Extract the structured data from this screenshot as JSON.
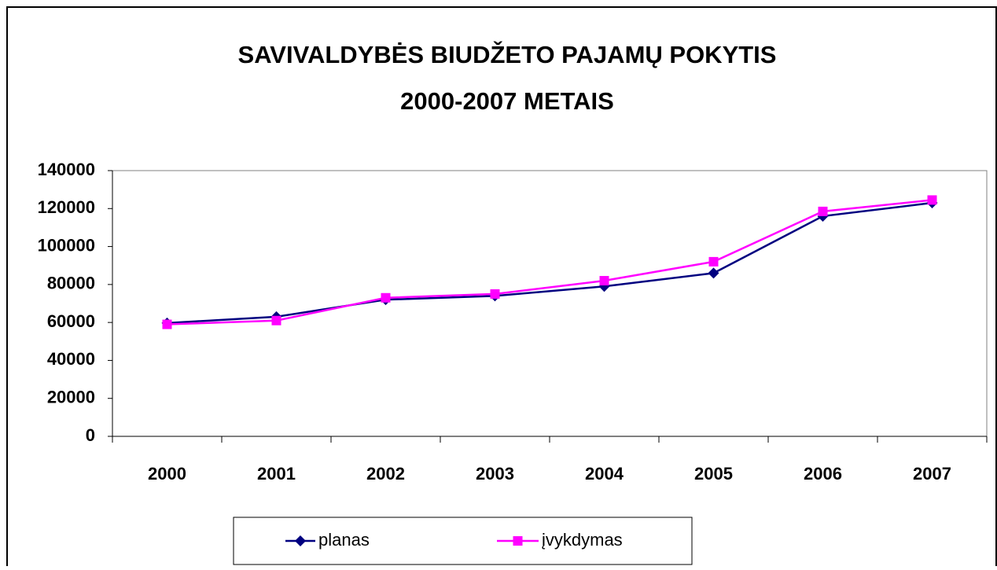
{
  "chart_data": {
    "type": "line",
    "title": [
      "SAVIVALDYBĖS BIUDŽETO PAJAMŲ POKYTIS",
      "2000-2007 METAIS"
    ],
    "categories": [
      "2000",
      "2001",
      "2002",
      "2003",
      "2004",
      "2005",
      "2006",
      "2007"
    ],
    "series": [
      {
        "name": "planas",
        "color": "#000080",
        "marker": "diamond",
        "values": [
          59700,
          63000,
          72000,
          74000,
          79000,
          86000,
          116000,
          123000
        ]
      },
      {
        "name": "įvykdymas",
        "color": "#ff00ff",
        "marker": "square",
        "values": [
          59000,
          61000,
          73000,
          75000,
          82000,
          92000,
          118500,
          124500
        ]
      }
    ],
    "ylim": [
      0,
      140000
    ],
    "yticks": [
      0,
      20000,
      40000,
      60000,
      80000,
      100000,
      120000,
      140000
    ],
    "grid": false,
    "legend": "bottom"
  }
}
